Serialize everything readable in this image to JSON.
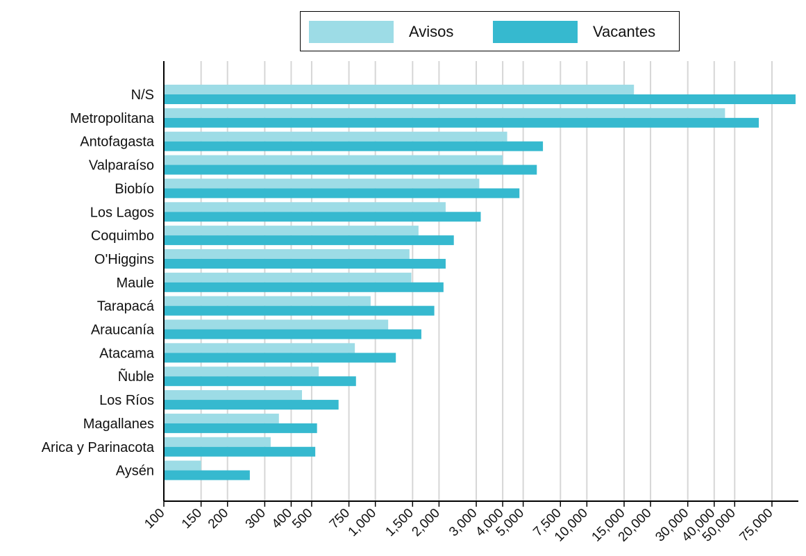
{
  "chart_data": {
    "type": "bar",
    "orientation": "horizontal",
    "xscale": "log",
    "grid": true,
    "legend_position": "top-center",
    "categories": [
      "N/S",
      "Metropolitana",
      "Antofagasta",
      "Valparaíso",
      "Biobío",
      "Los Lagos",
      "Coquimbo",
      "O'Higgins",
      "Maule",
      "Tarapacá",
      "Araucanía",
      "Atacama",
      "Ñuble",
      "Los Ríos",
      "Magallanes",
      "Arica y Parinacota",
      "Aysén"
    ],
    "series": [
      {
        "name": "Avisos",
        "color": "#9ddce6",
        "values": [
          16700,
          45000,
          4200,
          4000,
          3100,
          2150,
          1600,
          1450,
          1480,
          950,
          1150,
          800,
          540,
          450,
          350,
          320,
          150
        ]
      },
      {
        "name": "Vacantes",
        "color": "#36b9cf",
        "values": [
          97000,
          65000,
          6200,
          5800,
          4800,
          3150,
          2350,
          2150,
          2100,
          1900,
          1650,
          1250,
          810,
          670,
          530,
          520,
          255
        ]
      }
    ],
    "xticks": [
      100,
      150,
      200,
      300,
      400,
      500,
      750,
      1000,
      1500,
      2000,
      3000,
      4000,
      5000,
      7500,
      10000,
      15000,
      20000,
      30000,
      40000,
      50000,
      75000
    ],
    "xtick_labels": [
      "100",
      "150",
      "200",
      "300",
      "400",
      "500",
      "750",
      "1,000",
      "1,500",
      "2,000",
      "3,000",
      "4,000",
      "5,000",
      "7,500",
      "10,000",
      "15,000",
      "20,000",
      "30,000",
      "40,000",
      "50,000",
      "75,000"
    ],
    "xlim": [
      100,
      100000
    ],
    "title": "",
    "xlabel": "",
    "ylabel": ""
  }
}
